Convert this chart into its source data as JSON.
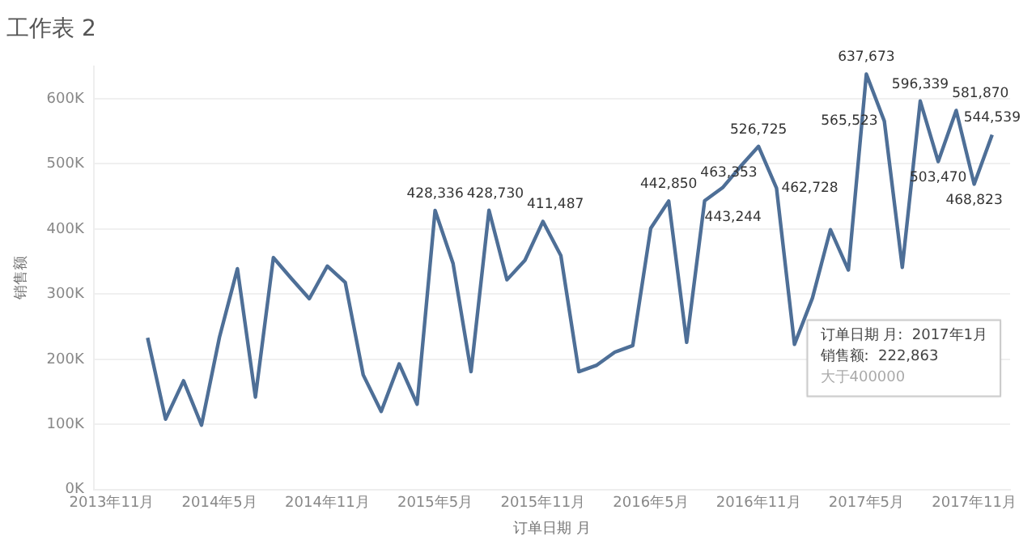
{
  "chart_data": {
    "type": "line",
    "title": "工作表 2",
    "xlabel": "订单日期 月",
    "ylabel": "销售额",
    "x": [
      "2014-01",
      "2014-02",
      "2014-03",
      "2014-04",
      "2014-05",
      "2014-06",
      "2014-07",
      "2014-08",
      "2014-09",
      "2014-10",
      "2014-11",
      "2014-12",
      "2015-01",
      "2015-02",
      "2015-03",
      "2015-04",
      "2015-05",
      "2015-06",
      "2015-07",
      "2015-08",
      "2015-09",
      "2015-10",
      "2015-11",
      "2015-12",
      "2016-01",
      "2016-02",
      "2016-03",
      "2016-04",
      "2016-05",
      "2016-06",
      "2016-07",
      "2016-08",
      "2016-09",
      "2016-10",
      "2016-11",
      "2016-12",
      "2017-01",
      "2017-02",
      "2017-03",
      "2017-04",
      "2017-05",
      "2017-06",
      "2017-07",
      "2017-08",
      "2017-09",
      "2017-10",
      "2017-11",
      "2017-12"
    ],
    "series": [
      {
        "color": "#4e6f97",
        "values": [
          233000,
          108000,
          167000,
          99000,
          234000,
          339000,
          142000,
          356000,
          324000,
          293000,
          343000,
          318000,
          176000,
          120000,
          193000,
          131000,
          428336,
          347000,
          181000,
          428730,
          322000,
          352000,
          411487,
          359000,
          181000,
          191000,
          211000,
          221000,
          401000,
          442850,
          226000,
          443244,
          463353,
          496000,
          526725,
          462728,
          222863,
          294000,
          399000,
          337000,
          637673,
          565523,
          341000,
          596339,
          503470,
          581870,
          468823,
          544539
        ],
        "value_labels": [
          null,
          null,
          null,
          null,
          null,
          null,
          null,
          null,
          null,
          null,
          null,
          null,
          null,
          null,
          null,
          null,
          "428,336",
          null,
          null,
          "428,730",
          null,
          null,
          "411,487",
          null,
          null,
          null,
          null,
          null,
          null,
          "442,850",
          null,
          "443,244",
          "463,353",
          null,
          "526,725",
          "462,728",
          null,
          null,
          null,
          null,
          "637,673",
          "565,523",
          null,
          "596,339",
          "503,470",
          "581,870",
          "468,823",
          "544,539"
        ]
      }
    ],
    "xlim": [
      "2013-10",
      "2018-01"
    ],
    "xticks": [
      {
        "value": "2013-11",
        "label": "2013年11月"
      },
      {
        "value": "2014-05",
        "label": "2014年5月"
      },
      {
        "value": "2014-11",
        "label": "2014年11月"
      },
      {
        "value": "2015-05",
        "label": "2015年5月"
      },
      {
        "value": "2015-11",
        "label": "2015年11月"
      },
      {
        "value": "2016-05",
        "label": "2016年5月"
      },
      {
        "value": "2016-11",
        "label": "2016年11月"
      },
      {
        "value": "2017-05",
        "label": "2017年5月"
      },
      {
        "value": "2017-11",
        "label": "2017年11月"
      }
    ],
    "ylim": [
      0,
      650000
    ],
    "yticks": [
      {
        "value": 0,
        "label": "0K"
      },
      {
        "value": 100000,
        "label": "100K"
      },
      {
        "value": 200000,
        "label": "200K"
      },
      {
        "value": 300000,
        "label": "300K"
      },
      {
        "value": 400000,
        "label": "400K"
      },
      {
        "value": 500000,
        "label": "500K"
      },
      {
        "value": 600000,
        "label": "600K"
      }
    ],
    "grid": "y",
    "legend": false,
    "marker": "none",
    "line_style": "solid",
    "annotations": [
      "订单日期 月:  2017年1月",
      "销售额:  222,863",
      "大于400000"
    ]
  }
}
